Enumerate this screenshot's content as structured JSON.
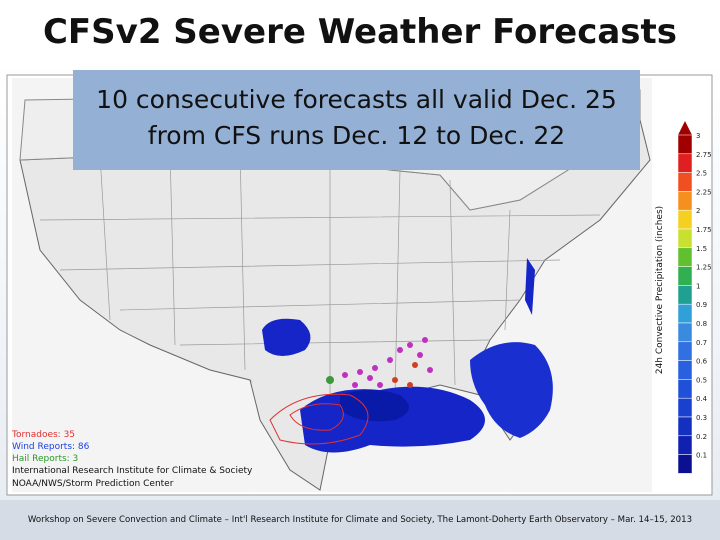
{
  "header": {
    "title": "CFSv2 Severe Weather Forecasts"
  },
  "callout": {
    "lines": [
      "10 consecutive forecasts all valid Dec. 25",
      "from CFS runs Dec. 12 to  Dec. 22"
    ]
  },
  "map": {
    "legend": {
      "tornadoes": "Tornadoes: 35",
      "wind": "Wind Reports: 86",
      "hail": "Hail Reports: 3"
    },
    "credits": [
      "International Research Institute for Climate & Society",
      "NOAA/NWS/Storm Prediction Center"
    ],
    "colorbar": {
      "title": "24h Convective Precipitation (inches)",
      "labels": [
        "3",
        "2.75",
        "2.5",
        "2.25",
        "2",
        "1.75",
        "1.5",
        "1.25",
        "1",
        "0.9",
        "0.8",
        "0.7",
        "0.6",
        "0.5",
        "0.4",
        "0.3",
        "0.2",
        "0.1"
      ]
    }
  },
  "footer": {
    "text": "Workshop on Severe Convection and Climate – Int'l Research Institute for Climate and Society, The Lamont-Doherty Earth Observatory – Mar. 14–15, 2013"
  }
}
